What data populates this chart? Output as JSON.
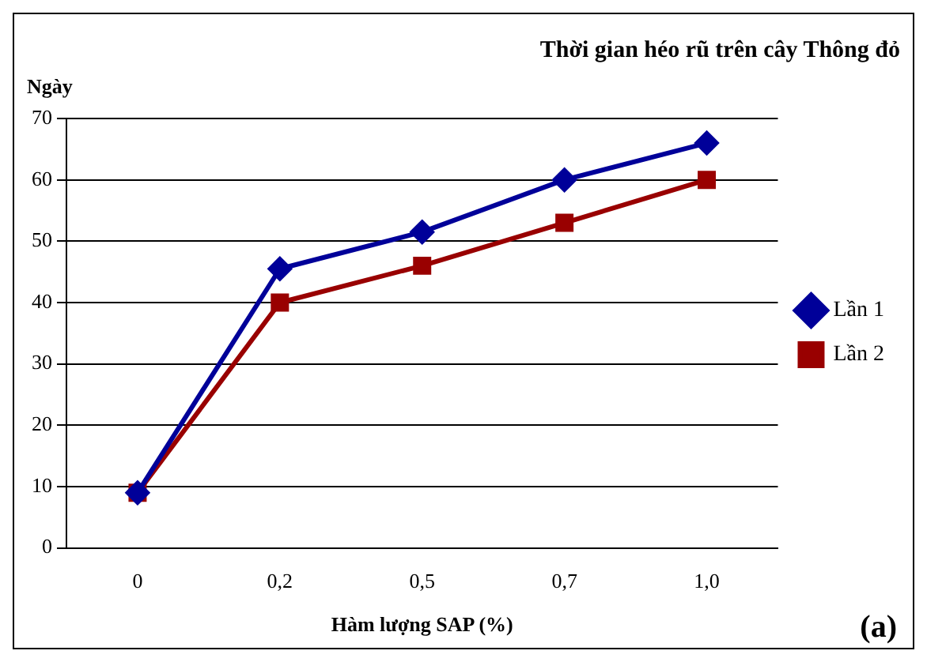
{
  "chart_data": {
    "type": "line",
    "title": "Thời gian héo rũ trên cây Thông đỏ",
    "xlabel": "Hàm lượng SAP (%)",
    "ylabel": "Ngày",
    "annotations": [
      "(a)"
    ],
    "categories": [
      "0",
      "0,2",
      "0,5",
      "0,7",
      "1,0"
    ],
    "series": [
      {
        "name": "Lần 1",
        "color": "#000099",
        "values": [
          9,
          45.5,
          51.5,
          60,
          66
        ],
        "marker": "diamond"
      },
      {
        "name": "Lần 2",
        "color": "#990000",
        "values": [
          9,
          40,
          46,
          53,
          60
        ],
        "marker": "square"
      }
    ],
    "ylim": [
      0,
      70
    ],
    "yticks": [
      0,
      10,
      20,
      30,
      40,
      50,
      60,
      70
    ],
    "grid": "y",
    "legend": "right",
    "line_style": "solid"
  }
}
